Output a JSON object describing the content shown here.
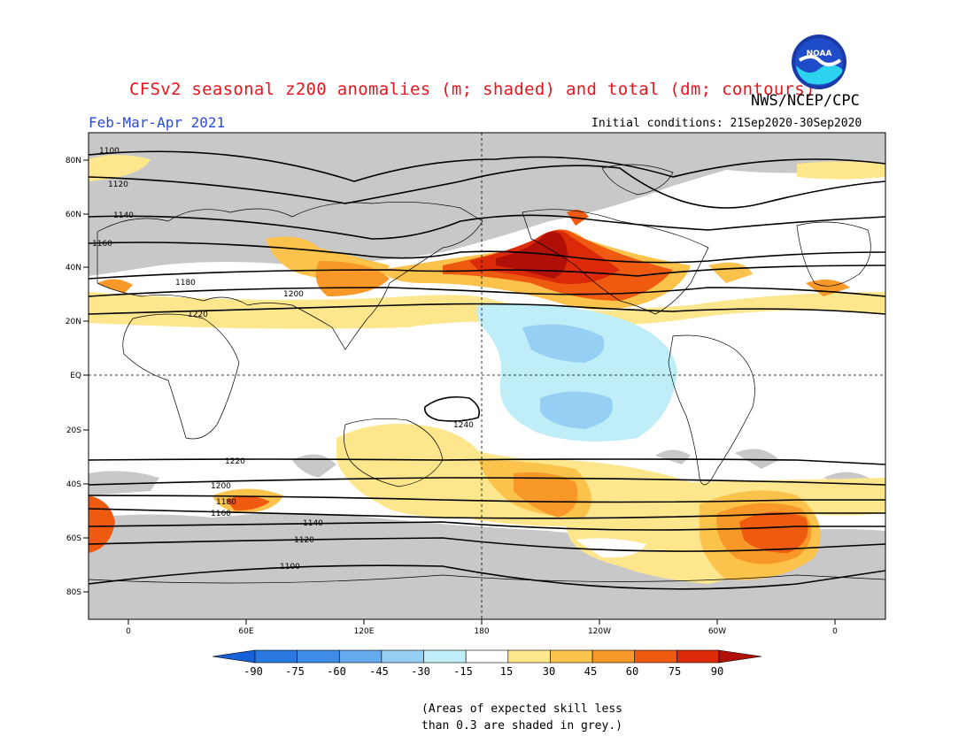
{
  "header": {
    "title": "CFSv2 seasonal z200 anomalies (m; shaded) and total (dm; contours)",
    "agency": "NWS/NCEP/CPC",
    "season": "Feb-Mar-Apr 2021",
    "initial_conditions": "Initial conditions: 21Sep2020-30Sep2020",
    "logo_text": "NOAA"
  },
  "map": {
    "lat_labels": [
      "80N",
      "60N",
      "40N",
      "20N",
      "EQ",
      "20S",
      "40S",
      "60S",
      "80S"
    ],
    "lon_labels": [
      "0",
      "60E",
      "120E",
      "180",
      "120W",
      "60W",
      "0"
    ],
    "grey_color": "#c8c8c8",
    "contours": [
      {
        "label": "1100",
        "lat": 75
      },
      {
        "label": "1120",
        "lat": 68
      },
      {
        "label": "1140",
        "lat": 60
      },
      {
        "label": "1160",
        "lat": 50
      },
      {
        "label": "1180",
        "lat": 40
      },
      {
        "label": "1200",
        "lat": 31
      },
      {
        "label": "1220",
        "lat": 23
      },
      {
        "label": "1240",
        "lat": -13
      },
      {
        "label": "1220",
        "lat": -31
      },
      {
        "label": "1200",
        "lat": -40
      },
      {
        "label": "1180",
        "lat": -45
      },
      {
        "label": "1160",
        "lat": -50
      },
      {
        "label": "1140",
        "lat": -56
      },
      {
        "label": "1120",
        "lat": -62
      },
      {
        "label": "1100",
        "lat": -72
      }
    ]
  },
  "colorbar": {
    "labels": [
      "-90",
      "-75",
      "-60",
      "-45",
      "-30",
      "-15",
      "15",
      "30",
      "45",
      "60",
      "75",
      "90"
    ],
    "colors": [
      "#1660d8",
      "#2878e0",
      "#3c8ce8",
      "#64aaee",
      "#96cff4",
      "#bfeef8",
      "#ffffff",
      "#fde68c",
      "#fbc24c",
      "#f79828",
      "#ee5a10",
      "#dc2a08",
      "#b01008"
    ]
  },
  "footnote": {
    "line1": "(Areas of expected skill less",
    "line2": "than 0.3 are shaded in grey.)"
  }
}
